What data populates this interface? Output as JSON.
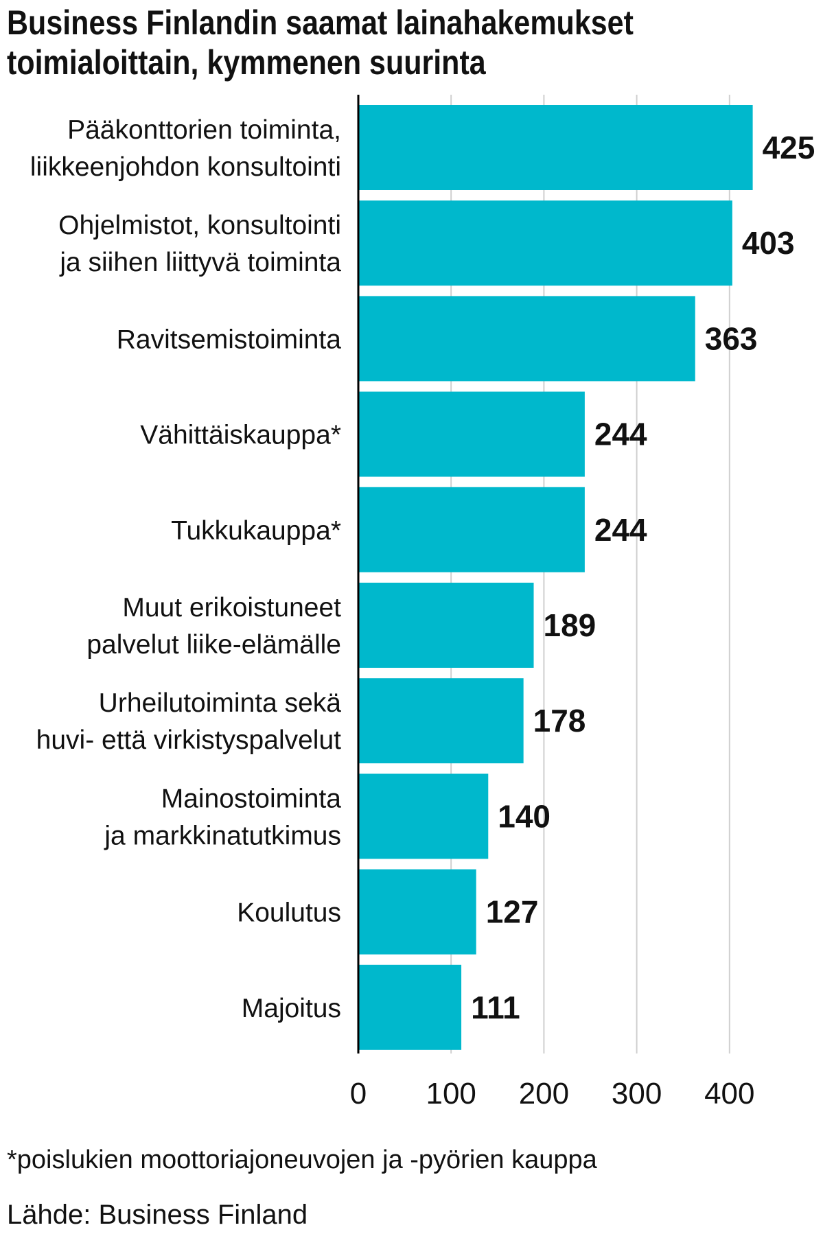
{
  "chart_data": {
    "type": "bar",
    "orientation": "horizontal",
    "title_lines": [
      "Business Finlandin saamat lainahakemukset",
      "toimialoittain, kymmenen suurinta"
    ],
    "categories": [
      [
        "Pääkonttorien toiminta,",
        "liikkeenjohdon konsultointi"
      ],
      [
        "Ohjelmistot, konsultointi",
        "ja siihen liittyvä toiminta"
      ],
      [
        "Ravitsemistoiminta"
      ],
      [
        "Vähittäiskauppa*"
      ],
      [
        "Tukkukauppa*"
      ],
      [
        "Muut erikoistuneet",
        "palvelut liike-elämälle"
      ],
      [
        "Urheilutoiminta sekä",
        "huvi- että virkistyspalvelut"
      ],
      [
        "Mainostoiminta",
        "ja markkinatutkimus"
      ],
      [
        "Koulutus"
      ],
      [
        "Majoitus"
      ]
    ],
    "values": [
      425,
      403,
      363,
      244,
      244,
      189,
      178,
      140,
      127,
      111
    ],
    "xlim": [
      0,
      450
    ],
    "xticks": [
      0,
      100,
      200,
      300,
      400
    ],
    "grid": true,
    "data_labels": true,
    "bar_color": "#00B8CC",
    "footnote": "*poislukien moottoriajoneuvojen ja -pyörien kauppa",
    "source": "Lähde: Business Finland"
  }
}
